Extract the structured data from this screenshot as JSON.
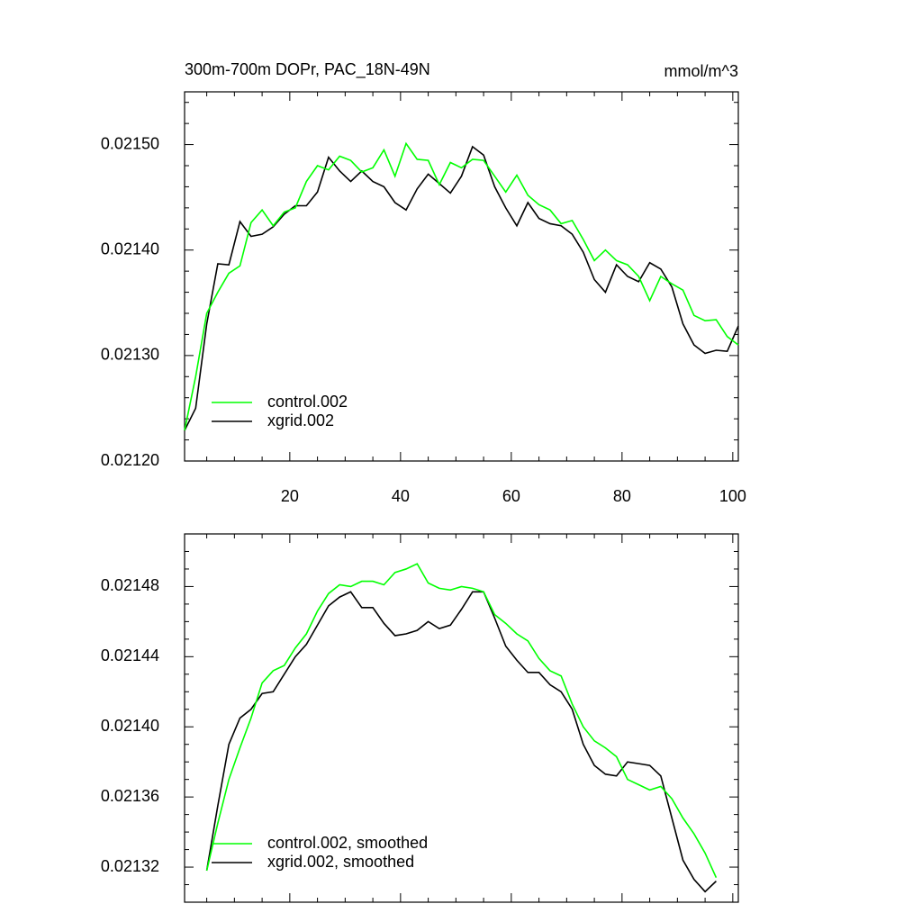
{
  "chart_data": [
    {
      "type": "line",
      "title": "300m-700m DOPr, PAC_18N-49N",
      "units": "mmol/m^3",
      "x": [
        1,
        3,
        5,
        7,
        9,
        11,
        13,
        15,
        17,
        19,
        21,
        23,
        25,
        27,
        29,
        31,
        33,
        35,
        37,
        39,
        41,
        43,
        45,
        47,
        49,
        51,
        53,
        55,
        57,
        59,
        61,
        63,
        65,
        67,
        69,
        71,
        73,
        75,
        77,
        79,
        81,
        83,
        85,
        87,
        89,
        91,
        93,
        95,
        97,
        99,
        101
      ],
      "series": [
        {
          "name": "xgrid.002",
          "color": "#000000",
          "values": [
            0.021229,
            0.02125,
            0.02133,
            0.021387,
            0.021386,
            0.021427,
            0.021413,
            0.021415,
            0.021422,
            0.021434,
            0.021442,
            0.021442,
            0.021455,
            0.021488,
            0.021475,
            0.021465,
            0.021475,
            0.021465,
            0.02146,
            0.021445,
            0.021438,
            0.021458,
            0.021472,
            0.021463,
            0.021454,
            0.02147,
            0.021498,
            0.02149,
            0.02146,
            0.02144,
            0.021423,
            0.021445,
            0.02143,
            0.021425,
            0.021423,
            0.021415,
            0.021398,
            0.021372,
            0.02136,
            0.021386,
            0.021375,
            0.02137,
            0.021388,
            0.021382,
            0.021365,
            0.02133,
            0.02131,
            0.021302,
            0.021305,
            0.021304,
            0.021328
          ]
        },
        {
          "name": "control.002",
          "color": "#00ff00",
          "values": [
            0.021229,
            0.02128,
            0.02134,
            0.02136,
            0.021378,
            0.021385,
            0.021426,
            0.021438,
            0.021423,
            0.021436,
            0.02144,
            0.021465,
            0.02148,
            0.021476,
            0.021489,
            0.021485,
            0.021474,
            0.021478,
            0.021495,
            0.02147,
            0.021501,
            0.021486,
            0.021485,
            0.021462,
            0.021483,
            0.021478,
            0.021486,
            0.021485,
            0.02147,
            0.021455,
            0.021471,
            0.021452,
            0.021443,
            0.021438,
            0.021425,
            0.021428,
            0.02141,
            0.02139,
            0.0214,
            0.02139,
            0.021386,
            0.021375,
            0.021352,
            0.021375,
            0.021368,
            0.021362,
            0.021338,
            0.021333,
            0.021334,
            0.021318,
            0.02131
          ]
        }
      ],
      "xlim": [
        1,
        101
      ],
      "ylim": [
        0.0212,
        0.02155
      ],
      "xticks": [
        20,
        40,
        60,
        80,
        100
      ],
      "yticks": [
        {
          "value": 0.0212,
          "label": "0.02120"
        },
        {
          "value": 0.0213,
          "label": "0.02130"
        },
        {
          "value": 0.0214,
          "label": "0.02140"
        },
        {
          "value": 0.0215,
          "label": "0.02150"
        }
      ],
      "xtick_labels": true,
      "legend": "lower left"
    },
    {
      "type": "line",
      "x": [
        5,
        7,
        9,
        11,
        13,
        15,
        17,
        19,
        21,
        23,
        25,
        27,
        29,
        31,
        33,
        35,
        37,
        39,
        41,
        43,
        45,
        47,
        49,
        51,
        53,
        55,
        57,
        59,
        61,
        63,
        65,
        67,
        69,
        71,
        73,
        75,
        77,
        79,
        81,
        83,
        85,
        87,
        89,
        91,
        93,
        95,
        97
      ],
      "series": [
        {
          "name": "xgrid.002, smoothed",
          "color": "#000000",
          "values": [
            0.021318,
            0.021355,
            0.02139,
            0.021405,
            0.02141,
            0.021419,
            0.02142,
            0.02143,
            0.02144,
            0.021447,
            0.021458,
            0.021469,
            0.021474,
            0.021477,
            0.021468,
            0.021468,
            0.021459,
            0.021452,
            0.021453,
            0.021455,
            0.02146,
            0.021456,
            0.021458,
            0.021467,
            0.021477,
            0.021477,
            0.021462,
            0.021446,
            0.021438,
            0.021431,
            0.021431,
            0.021424,
            0.02142,
            0.02141,
            0.02139,
            0.021378,
            0.021373,
            0.021372,
            0.02138,
            0.021379,
            0.021378,
            0.021372,
            0.021348,
            0.021324,
            0.021313,
            0.021306,
            0.021312
          ]
        },
        {
          "name": "control.002, smoothed",
          "color": "#00ff00",
          "values": [
            0.021318,
            0.021345,
            0.02137,
            0.021388,
            0.021405,
            0.021425,
            0.021432,
            0.021435,
            0.021445,
            0.021453,
            0.021466,
            0.021476,
            0.021481,
            0.02148,
            0.021483,
            0.021483,
            0.021481,
            0.021488,
            0.02149,
            0.021493,
            0.021482,
            0.021479,
            0.021478,
            0.02148,
            0.021479,
            0.021477,
            0.021464,
            0.021459,
            0.021453,
            0.021449,
            0.021439,
            0.021432,
            0.021429,
            0.021413,
            0.0214,
            0.021392,
            0.021388,
            0.021383,
            0.02137,
            0.021367,
            0.021364,
            0.021366,
            0.021359,
            0.021348,
            0.021339,
            0.021328,
            0.021314
          ]
        }
      ],
      "xlim": [
        1,
        101
      ],
      "ylim": [
        0.0213,
        0.02151
      ],
      "xticks": [
        20,
        40,
        60,
        80,
        100
      ],
      "yticks": [
        0.02132,
        0.02136,
        {
          "value": 0.0214,
          "label": "0.02140"
        },
        0.02144,
        0.02148
      ],
      "xtick_labels": false,
      "legend": "lower left"
    }
  ]
}
